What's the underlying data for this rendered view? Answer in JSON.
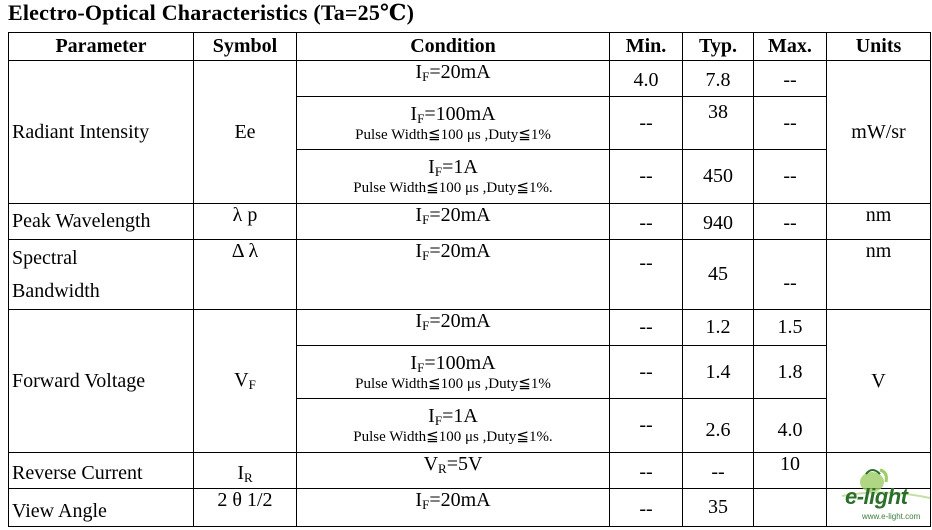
{
  "title": "Electro-Optical Characteristics (Ta=25℃)",
  "headers": {
    "parameter": "Parameter",
    "symbol": "Symbol",
    "condition": "Condition",
    "min": "Min.",
    "typ": "Typ.",
    "max": "Max.",
    "units": "Units"
  },
  "conditions": {
    "if_prefix": "I",
    "if_sub": "F",
    "vr_prefix": "V",
    "vr_sub": "R",
    "c20": "=20mA",
    "c100": "=100mA",
    "c1a": "=1A",
    "cvr": "=5V",
    "pulse": "Pulse Width≦100 μs ,Duty≦1%",
    "pulse_dot": "Pulse Width≦100 μs ,Duty≦1%."
  },
  "radiant": {
    "parameter": "Radiant Intensity",
    "symbol": "Ee",
    "units": "mW/sr",
    "r1": {
      "min": "4.0",
      "typ": "7.8",
      "max": "--"
    },
    "r2": {
      "min": "--",
      "typ": "38",
      "max": "--"
    },
    "r3": {
      "min": "--",
      "typ": "450",
      "max": "--"
    }
  },
  "peak": {
    "parameter": "Peak Wavelength",
    "symbol": "λ p",
    "min": "--",
    "typ": "940",
    "max": "--",
    "units": "nm"
  },
  "spectral": {
    "parameter_line1": "Spectral",
    "parameter_line2": "Bandwidth",
    "symbol": "Δ λ",
    "min": "--",
    "typ": "45",
    "max": "--",
    "units": "nm"
  },
  "forward": {
    "parameter": "Forward Voltage",
    "symbol_prefix": "V",
    "symbol_sub": "F",
    "units": "V",
    "r1": {
      "min": "--",
      "typ": "1.2",
      "max": "1.5"
    },
    "r2": {
      "min": "--",
      "typ": "1.4",
      "max": "1.8"
    },
    "r3": {
      "min": "--",
      "typ": "2.6",
      "max": "4.0"
    }
  },
  "reverse": {
    "parameter": "Reverse Current",
    "symbol_prefix": "I",
    "symbol_sub": "R",
    "min": "--",
    "typ": "--",
    "max": "10",
    "units": ""
  },
  "view": {
    "parameter": "View Angle",
    "symbol": "2 θ 1/2",
    "min": "--",
    "typ": "35",
    "max": "",
    "units": ""
  },
  "logo": {
    "name": "e-light",
    "url": "www.e-light.com",
    "colors": {
      "green": "#2b6f2b",
      "light": "#9ccc65"
    }
  }
}
